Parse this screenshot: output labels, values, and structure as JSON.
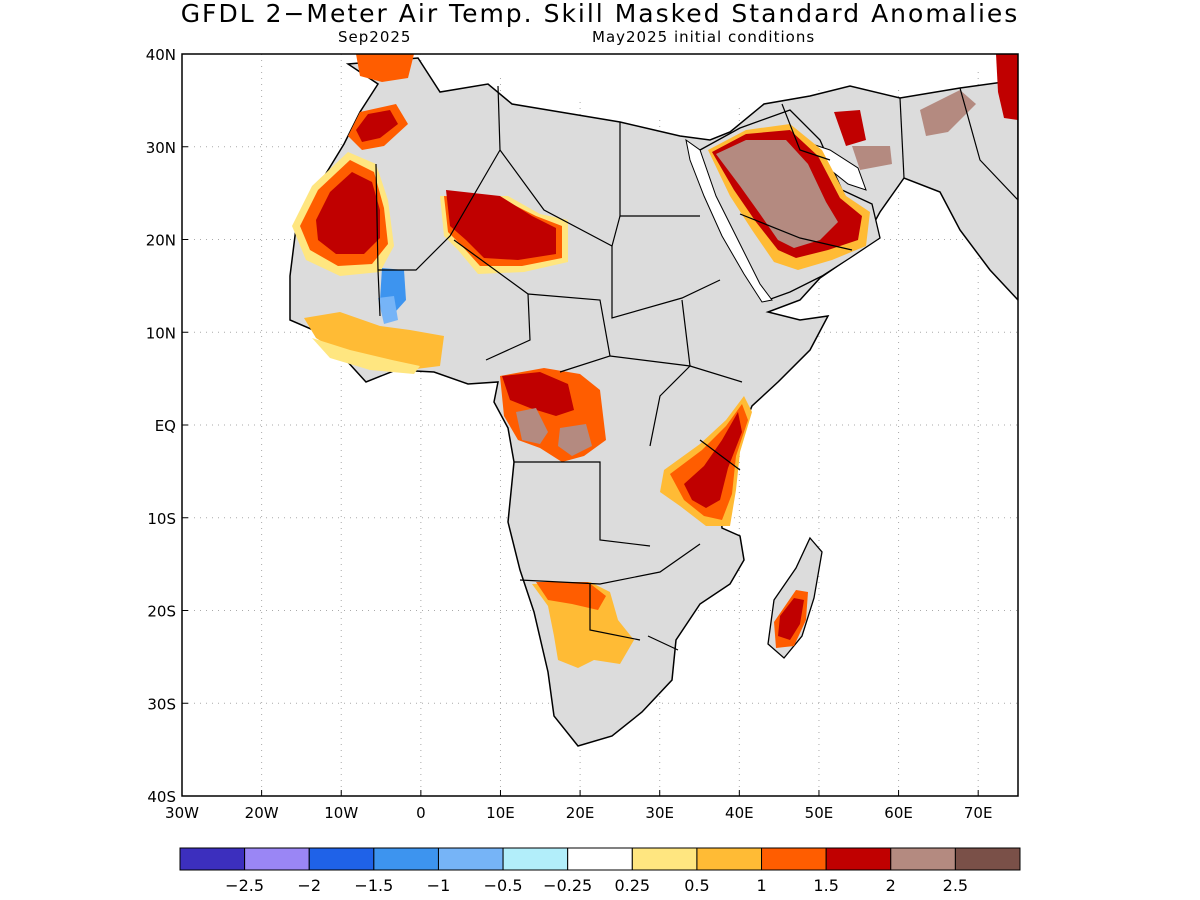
{
  "title": "GFDL 2−Meter Air Temp. Skill Masked Standard Anomalies",
  "subtitle_left": "Sep2025",
  "subtitle_right": "May2025 initial conditions",
  "map": {
    "lon_range": [
      -30,
      75
    ],
    "lat_range": [
      -40,
      40
    ],
    "x_ticks": [
      "30W",
      "20W",
      "10W",
      "0",
      "10E",
      "20E",
      "30E",
      "40E",
      "50E",
      "60E",
      "70E"
    ],
    "y_ticks": [
      "40N",
      "30N",
      "20N",
      "10N",
      "EQ",
      "10S",
      "20S",
      "30S",
      "40S"
    ],
    "grid": "dotted"
  },
  "colorbar": {
    "colors": [
      "#3c2fbe",
      "#9a86f5",
      "#1f62e8",
      "#3d94ef",
      "#76b4f7",
      "#b2eefa",
      "#ffffff",
      "#ffe680",
      "#ffbb35",
      "#ff5d00",
      "#c00000",
      "#b48a80",
      "#7a5048"
    ],
    "labels": [
      "−2.5",
      "−2",
      "−1.5",
      "−1",
      "−0.5",
      "−0.25",
      "0.25",
      "0.5",
      "1",
      "1.5",
      "2",
      "2.5"
    ]
  }
}
